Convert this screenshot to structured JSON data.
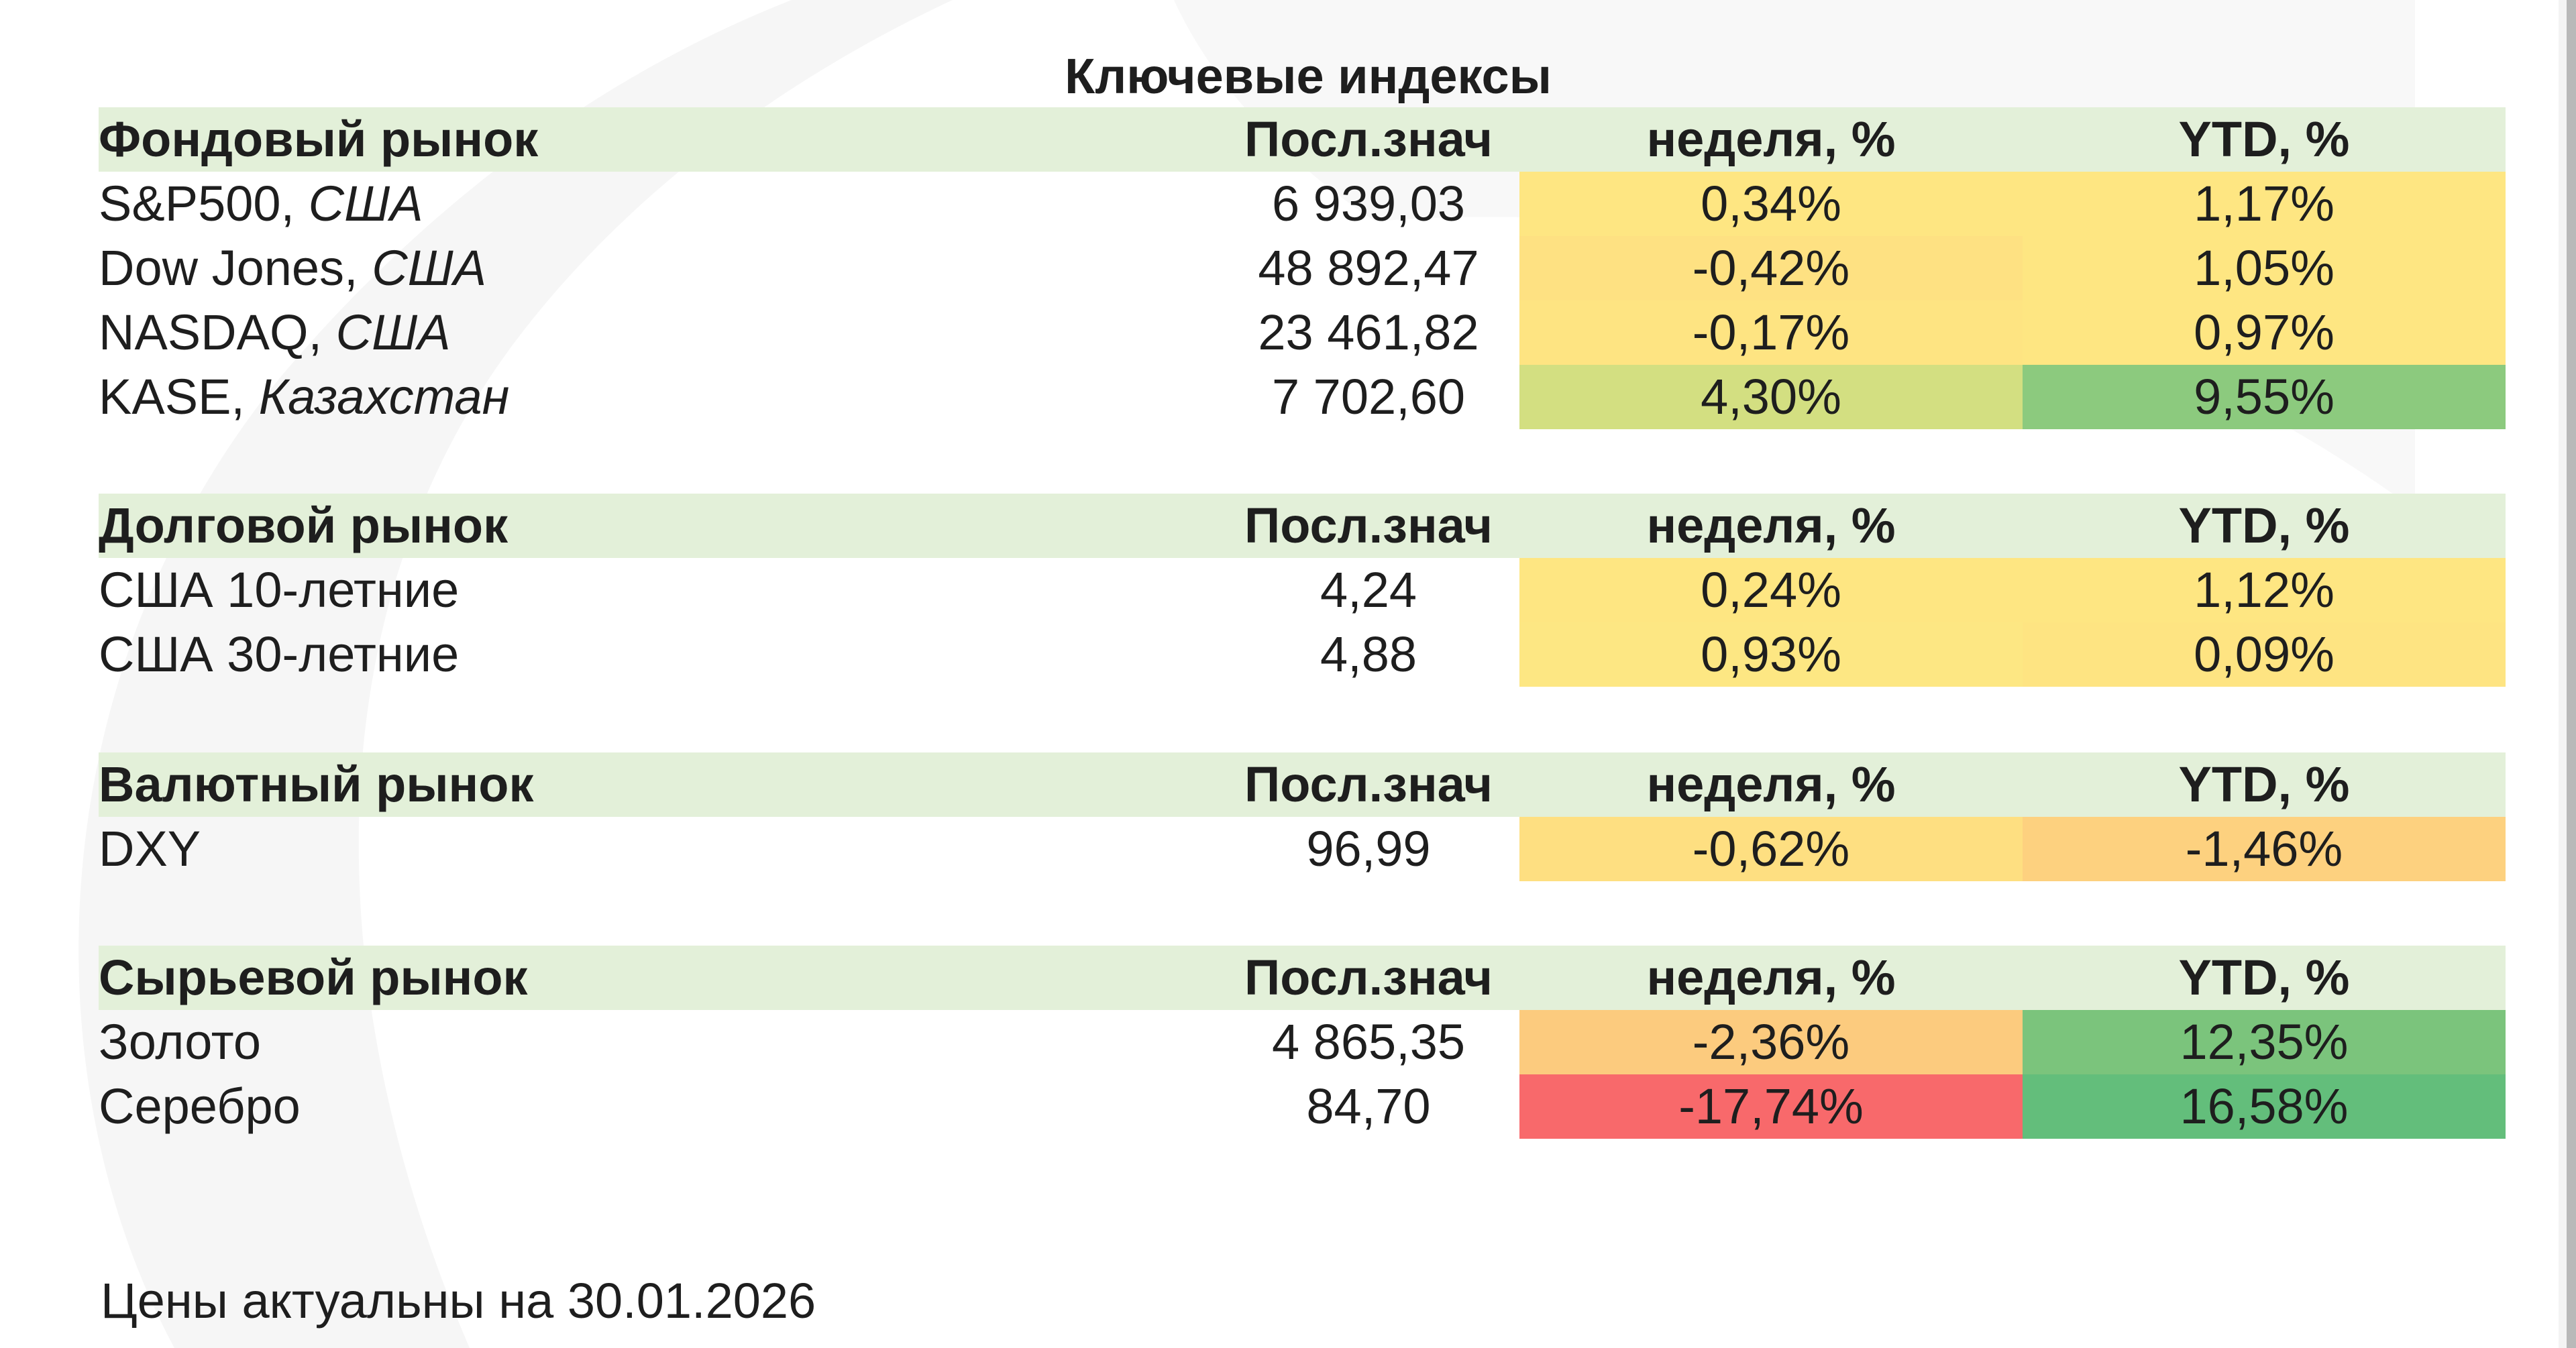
{
  "title": "Ключевые индексы",
  "columns": {
    "last": "Посл.знач",
    "week": "неделя, %",
    "ytd": "YTD, %"
  },
  "sections": [
    {
      "name": "Фондовый рынок",
      "rows": [
        {
          "name": "S&P500, ",
          "country": "США",
          "last": "6 939,03",
          "week": "0,34%",
          "week_color": "#fee682",
          "ytd": "1,17%",
          "ytd_color": "#fee682"
        },
        {
          "name": "Dow Jones, ",
          "country": "США",
          "last": "48 892,47",
          "week": "-0,42%",
          "week_color": "#fee182",
          "ytd": "1,05%",
          "ytd_color": "#fee682"
        },
        {
          "name": "NASDAQ, ",
          "country": "США",
          "last": "23 461,82",
          "week": "-0,17%",
          "week_color": "#fee482",
          "ytd": "0,97%",
          "ytd_color": "#fee682"
        },
        {
          "name": "KASE, ",
          "country": "Казахстан",
          "last": "7 702,60",
          "week": "4,30%",
          "week_color": "#d3df81",
          "ytd": "9,55%",
          "ytd_color": "#8cca7e"
        }
      ]
    },
    {
      "name": "Долговой рынок",
      "rows": [
        {
          "name": "США 10-летние",
          "country": "",
          "last": "4,24",
          "week": "0,24%",
          "week_color": "#fee682",
          "ytd": "1,12%",
          "ytd_color": "#fee682"
        },
        {
          "name": "США 30-летние",
          "country": "",
          "last": "4,88",
          "week": "0,93%",
          "week_color": "#fde783",
          "ytd": "0,09%",
          "ytd_color": "#fee482"
        }
      ]
    },
    {
      "name": "Валютный рынок",
      "rows": [
        {
          "name": "DXY",
          "country": "",
          "last": "96,99",
          "week": "-0,62%",
          "week_color": "#fedf81",
          "ytd": "-1,46%",
          "ytd_color": "#fdd17f"
        }
      ]
    },
    {
      "name": "Сырьевой рынок",
      "rows": [
        {
          "name": "Золото",
          "country": "",
          "last": "4 865,35",
          "week": "-2,36%",
          "week_color": "#fccb7e",
          "ytd": "12,35%",
          "ytd_color": "#7bc47c"
        },
        {
          "name": "Серебро",
          "country": "",
          "last": "84,70",
          "week": "-17,74%",
          "week_color": "#f8696b",
          "ytd": "16,58%",
          "ytd_color": "#63be7b"
        }
      ]
    }
  ],
  "footer": "Цены актуальны на 30.01.2026"
}
